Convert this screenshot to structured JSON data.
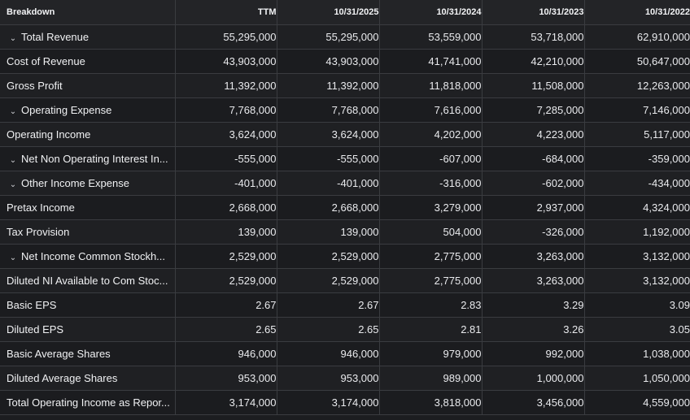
{
  "header": {
    "breakdown": "Breakdown",
    "columns": [
      "TTM",
      "10/31/2025",
      "10/31/2024",
      "10/31/2023",
      "10/31/2022"
    ]
  },
  "rows": [
    {
      "label": "Total Revenue",
      "expandable": true,
      "values": [
        "55,295,000",
        "55,295,000",
        "53,559,000",
        "53,718,000",
        "62,910,000"
      ]
    },
    {
      "label": "Cost of Revenue",
      "expandable": false,
      "values": [
        "43,903,000",
        "43,903,000",
        "41,741,000",
        "42,210,000",
        "50,647,000"
      ]
    },
    {
      "label": "Gross Profit",
      "expandable": false,
      "values": [
        "11,392,000",
        "11,392,000",
        "11,818,000",
        "11,508,000",
        "12,263,000"
      ]
    },
    {
      "label": "Operating Expense",
      "expandable": true,
      "values": [
        "7,768,000",
        "7,768,000",
        "7,616,000",
        "7,285,000",
        "7,146,000"
      ]
    },
    {
      "label": "Operating Income",
      "expandable": false,
      "values": [
        "3,624,000",
        "3,624,000",
        "4,202,000",
        "4,223,000",
        "5,117,000"
      ]
    },
    {
      "label": "Net Non Operating Interest In...",
      "expandable": true,
      "values": [
        "-555,000",
        "-555,000",
        "-607,000",
        "-684,000",
        "-359,000"
      ]
    },
    {
      "label": "Other Income Expense",
      "expandable": true,
      "values": [
        "-401,000",
        "-401,000",
        "-316,000",
        "-602,000",
        "-434,000"
      ]
    },
    {
      "label": "Pretax Income",
      "expandable": false,
      "values": [
        "2,668,000",
        "2,668,000",
        "3,279,000",
        "2,937,000",
        "4,324,000"
      ]
    },
    {
      "label": "Tax Provision",
      "expandable": false,
      "values": [
        "139,000",
        "139,000",
        "504,000",
        "-326,000",
        "1,192,000"
      ]
    },
    {
      "label": "Net Income Common Stockh...",
      "expandable": true,
      "values": [
        "2,529,000",
        "2,529,000",
        "2,775,000",
        "3,263,000",
        "3,132,000"
      ]
    },
    {
      "label": "Diluted NI Available to Com Stoc...",
      "expandable": false,
      "values": [
        "2,529,000",
        "2,529,000",
        "2,775,000",
        "3,263,000",
        "3,132,000"
      ]
    },
    {
      "label": "Basic EPS",
      "expandable": false,
      "values": [
        "2.67",
        "2.67",
        "2.83",
        "3.29",
        "3.09"
      ]
    },
    {
      "label": "Diluted EPS",
      "expandable": false,
      "values": [
        "2.65",
        "2.65",
        "2.81",
        "3.26",
        "3.05"
      ]
    },
    {
      "label": "Basic Average Shares",
      "expandable": false,
      "values": [
        "946,000",
        "946,000",
        "979,000",
        "992,000",
        "1,038,000"
      ]
    },
    {
      "label": "Diluted Average Shares",
      "expandable": false,
      "values": [
        "953,000",
        "953,000",
        "989,000",
        "1,000,000",
        "1,050,000"
      ]
    },
    {
      "label": "Total Operating Income as Repor...",
      "expandable": false,
      "values": [
        "3,174,000",
        "3,174,000",
        "3,818,000",
        "3,456,000",
        "4,559,000"
      ]
    }
  ],
  "icons": {
    "expand": "chevron-down-icon"
  },
  "colors": {
    "background": "#1c1d20",
    "border": "#3a3c40",
    "text": "#e9eaed"
  }
}
